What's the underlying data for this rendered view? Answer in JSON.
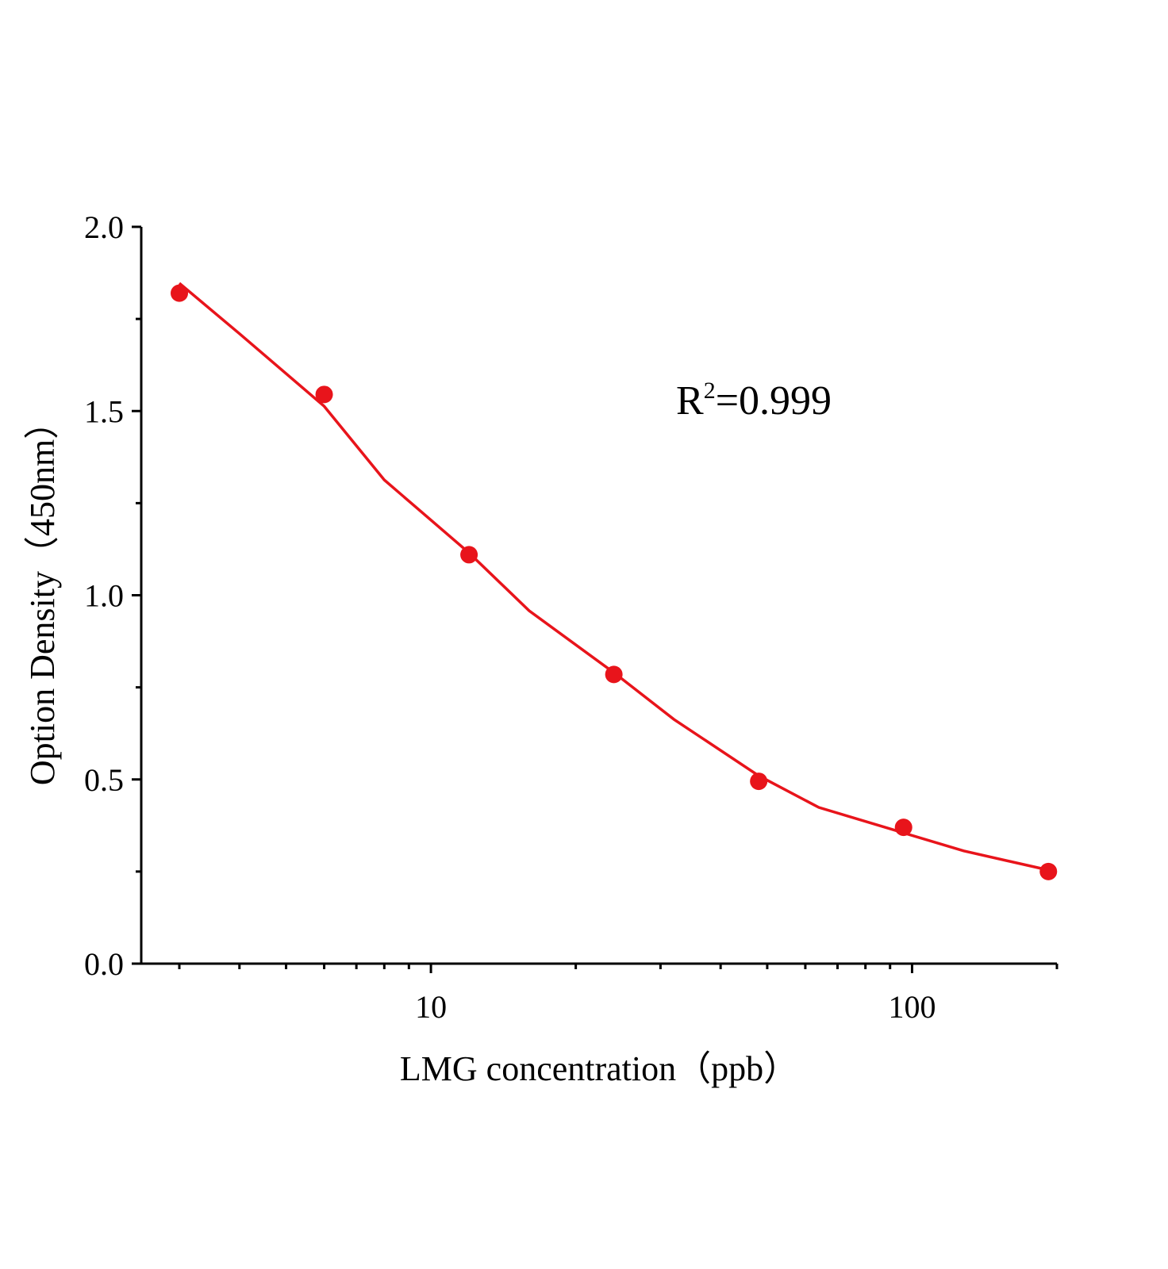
{
  "chart_data": {
    "type": "scatter",
    "x_label": "LMG  concentration（ppb）",
    "y_label": "Option Density（450nm）",
    "annotation": {
      "base": "R",
      "sup": "2",
      "text": "=0.999"
    },
    "xscale": "log",
    "xlim": [
      2.5,
      200
    ],
    "xticks": [
      10,
      100
    ],
    "xminorticks": [
      3,
      4,
      5,
      6,
      7,
      8,
      9,
      20,
      30,
      40,
      50,
      60,
      70,
      80,
      90,
      200
    ],
    "ylim": [
      0,
      2.0
    ],
    "yticks": [
      {
        "value": 0,
        "label": "0.0"
      },
      0.5,
      {
        "value": 1,
        "label": "1.0"
      },
      1.5,
      {
        "value": 2,
        "label": "2.0"
      }
    ],
    "yminorticks": [
      0.25,
      0.75,
      1.25,
      1.75
    ],
    "series": [
      {
        "style": "line",
        "color": "#e8141b",
        "x": [
          3,
          4,
          6,
          8,
          12,
          16,
          24,
          32,
          48,
          64,
          96,
          128,
          192
        ],
        "values": [
          1.847,
          1.71,
          1.513,
          1.313,
          1.115,
          0.958,
          0.79,
          0.663,
          0.51,
          0.424,
          0.355,
          0.306,
          0.254
        ]
      },
      {
        "style": "markers",
        "color": "#e8141b",
        "x": [
          3,
          6,
          12,
          24,
          48,
          96,
          192
        ],
        "values": [
          1.82,
          1.545,
          1.11,
          0.785,
          0.495,
          0.37,
          0.25
        ]
      }
    ]
  }
}
